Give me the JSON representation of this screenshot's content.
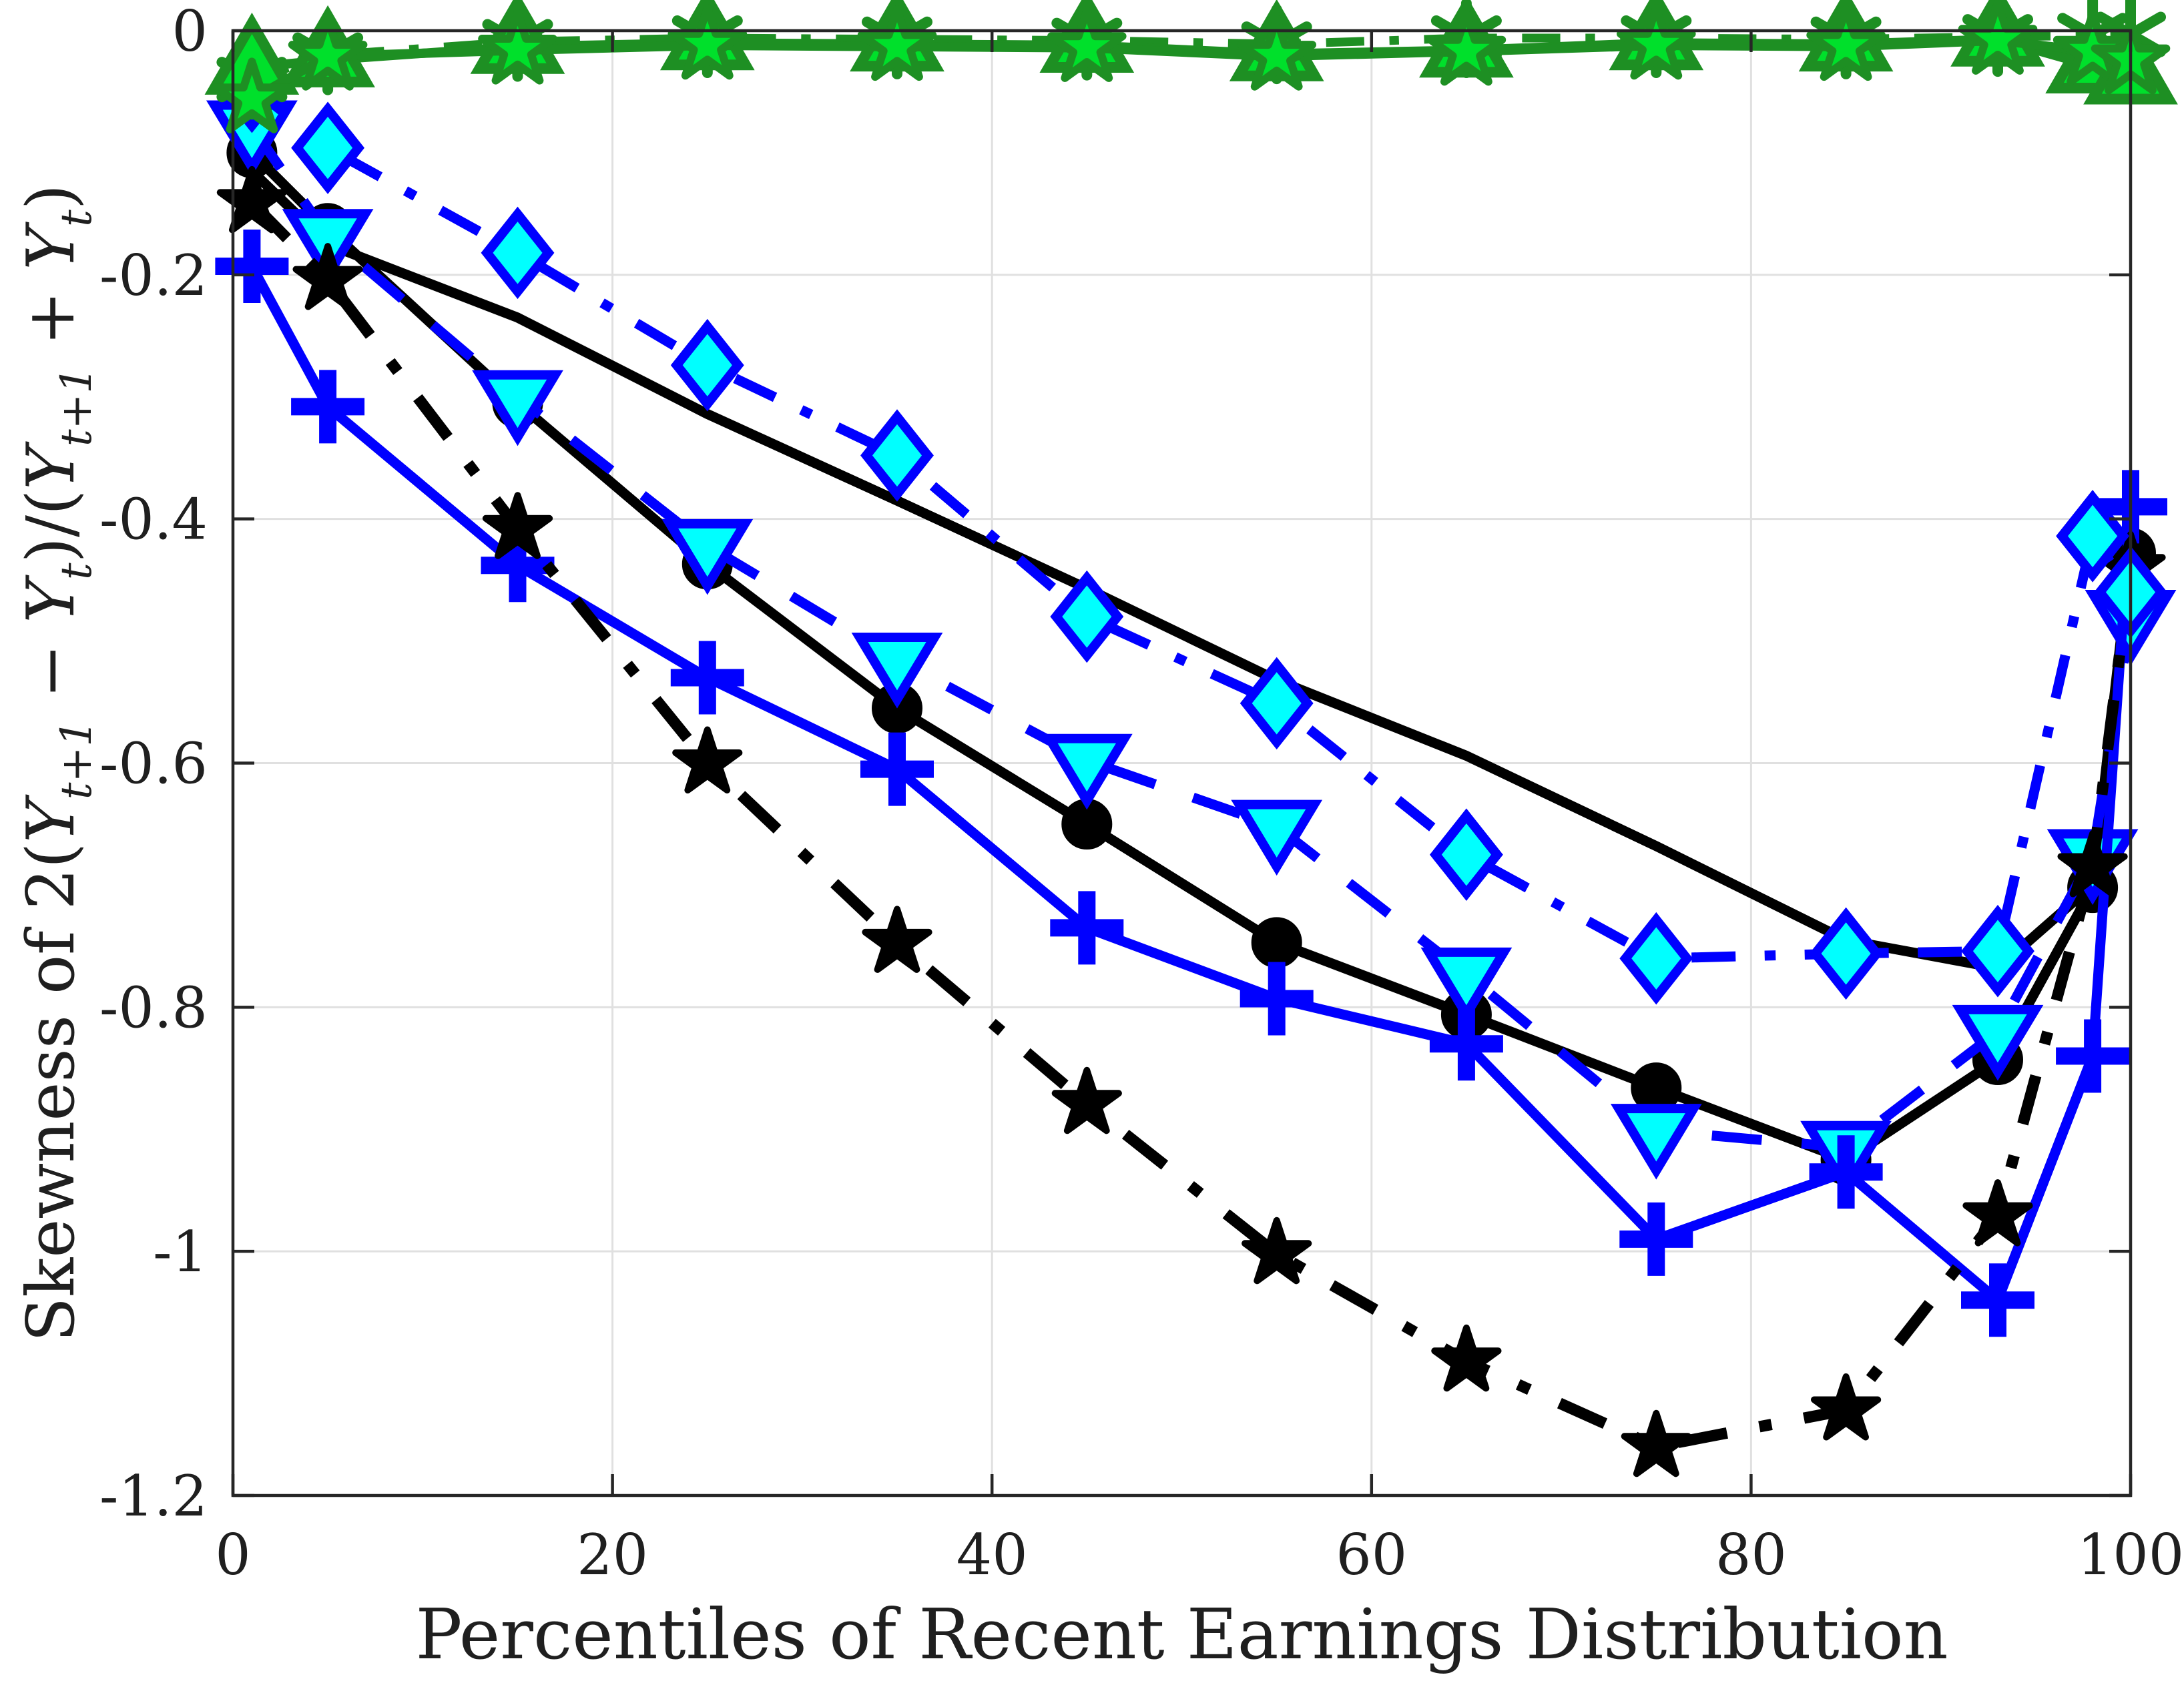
{
  "chart_data": {
    "type": "line",
    "title": "",
    "xlabel": "Percentiles of Recent Earnings Distribution",
    "ylabel_runs": [
      {
        "t": "Skewness of 2("
      },
      {
        "t": "Y",
        "i": 1
      },
      {
        "t": "t+1",
        "i": 1,
        "sub": 1
      },
      {
        "t": " − "
      },
      {
        "t": "Y",
        "i": 1
      },
      {
        "t": "t",
        "i": 1,
        "sub": 1
      },
      {
        "t": ")/("
      },
      {
        "t": "Y",
        "i": 1
      },
      {
        "t": "t+1",
        "i": 1,
        "sub": 1
      },
      {
        "t": " + "
      },
      {
        "t": "Y",
        "i": 1
      },
      {
        "t": "t",
        "i": 1,
        "sub": 1
      },
      {
        "t": ")"
      }
    ],
    "xlim": [
      0,
      100
    ],
    "ylim": [
      -1.2,
      0
    ],
    "xticks": [
      0,
      20,
      40,
      60,
      80,
      100
    ],
    "xtick_labels": [
      "0",
      "20",
      "40",
      "60",
      "80",
      "100"
    ],
    "yticks": [
      0,
      -0.2,
      -0.4,
      -0.6,
      -0.8,
      -1,
      -1.2
    ],
    "ytick_labels": [
      "0",
      "-0.2",
      "-0.4",
      "-0.6",
      "-0.8",
      "-1",
      "-1.2"
    ],
    "grid": true,
    "legend": null,
    "x": [
      1,
      5,
      15,
      25,
      35,
      45,
      55,
      65,
      75,
      85,
      93,
      98,
      100
    ],
    "series": [
      {
        "name": "black-solid-no-marker",
        "color": "#000000",
        "line": "solid",
        "lw": 15,
        "marker": "none",
        "face": "none",
        "edge": "none",
        "values": [
          -0.115,
          -0.175,
          -0.235,
          -0.314,
          -0.385,
          -0.457,
          -0.532,
          -0.594,
          -0.668,
          -0.745,
          -0.768,
          -0.7,
          -0.44
        ]
      },
      {
        "name": "black-circle",
        "color": "#000000",
        "line": "solid",
        "lw": 15,
        "marker": "circle",
        "face": "#000000",
        "edge": "#000000",
        "values": [
          -0.1,
          -0.162,
          -0.305,
          -0.437,
          -0.555,
          -0.65,
          -0.747,
          -0.806,
          -0.866,
          -0.925,
          -0.843,
          -0.702,
          -0.428
        ]
      },
      {
        "name": "blue-triangle-down",
        "color": "#0000ff",
        "line": "dashed",
        "lw": 15,
        "marker": "triangle-down",
        "face": "#00ffff",
        "edge": "#0000ff",
        "values": [
          -0.079,
          -0.168,
          -0.3,
          -0.422,
          -0.515,
          -0.598,
          -0.652,
          -0.773,
          -0.901,
          -0.915,
          -0.82,
          -0.676,
          -0.48
        ]
      },
      {
        "name": "blue-plus",
        "color": "#0000ff",
        "line": "solid",
        "lw": 15,
        "marker": "plus",
        "face": "#0000ff",
        "edge": "#0000ff",
        "values": [
          -0.193,
          -0.308,
          -0.438,
          -0.53,
          -0.605,
          -0.735,
          -0.793,
          -0.83,
          -0.99,
          -0.935,
          -1.04,
          -0.84,
          -0.39
        ]
      },
      {
        "name": "black-star",
        "color": "#000000",
        "line": "dashdot",
        "lw": 17,
        "marker": "star5",
        "face": "#000000",
        "edge": "#000000",
        "values": [
          -0.141,
          -0.204,
          -0.408,
          -0.6,
          -0.747,
          -0.879,
          -1.002,
          -1.09,
          -1.16,
          -1.13,
          -0.971,
          -0.685,
          -0.44
        ]
      },
      {
        "name": "blue-diamond",
        "color": "#0000ff",
        "line": "dashdot",
        "lw": 15,
        "marker": "diamond",
        "face": "#00ffff",
        "edge": "#0000ff",
        "values": [
          -0.046,
          -0.096,
          -0.182,
          -0.274,
          -0.348,
          -0.48,
          -0.551,
          -0.675,
          -0.76,
          -0.756,
          -0.754,
          -0.414,
          -0.46
        ]
      },
      {
        "name": "green-asterisk",
        "color": "#1e8f23",
        "line": "dashdot",
        "lw": 13,
        "marker": "asterisk",
        "face": "#1e8f23",
        "edge": "#1e8f23",
        "values": [
          -0.04,
          -0.02,
          -0.009,
          -0.006,
          -0.007,
          -0.008,
          -0.011,
          -0.006,
          -0.006,
          -0.007,
          -0.005,
          -0.004,
          -0.003
        ]
      },
      {
        "name": "green-triangle",
        "color": "#1e8f23",
        "line": "solid",
        "lw": 14,
        "marker": "triangle-up",
        "face": "#00e02b",
        "edge": "#1e8f23",
        "values": [
          -0.03,
          -0.024,
          -0.013,
          -0.01,
          -0.011,
          -0.012,
          -0.019,
          -0.016,
          -0.01,
          -0.011,
          -0.007,
          -0.029,
          -0.038
        ]
      },
      {
        "name": "green-star",
        "color": "#1e8f23",
        "line": "solid",
        "lw": 14,
        "marker": "star5",
        "face": "#00e02b",
        "edge": "#1e8f23",
        "values": [
          -0.056,
          -0.021,
          -0.016,
          -0.012,
          -0.013,
          -0.014,
          -0.021,
          -0.017,
          -0.012,
          -0.013,
          -0.008,
          -0.017,
          -0.024
        ]
      }
    ],
    "axis_color": "#262626",
    "grid_color": "#e0e0e0"
  }
}
